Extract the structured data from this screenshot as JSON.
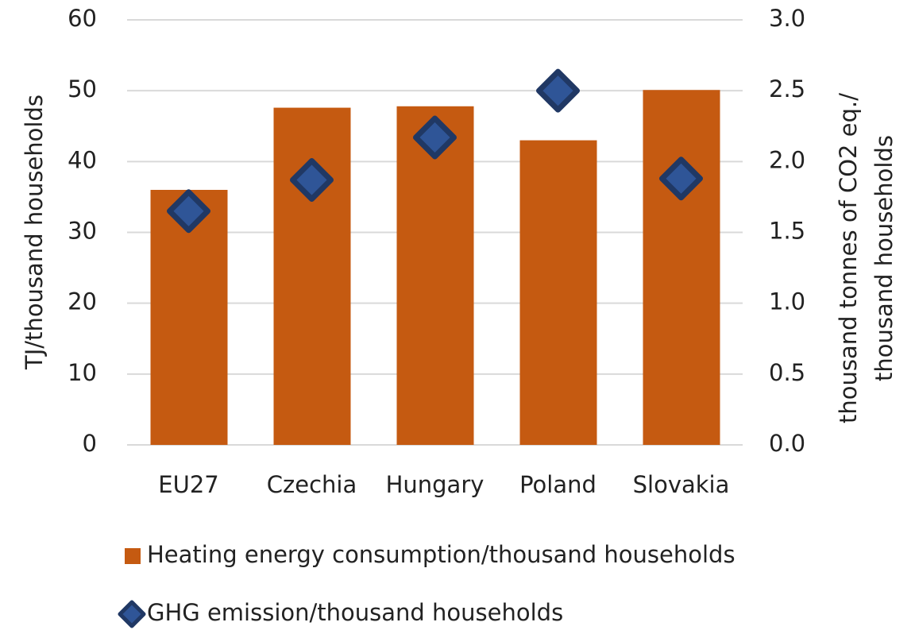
{
  "chart_data": {
    "type": "bar",
    "ylabel": "TJ/thousand households",
    "y2label": [
      "thousand tonnes of CO2 eq./",
      "thousand households"
    ],
    "categories": [
      "EU27",
      "Czechia",
      "Hungary",
      "Poland",
      "Slovakia"
    ],
    "series": [
      {
        "name": "Heating energy consumption/thousand households",
        "type": "bar",
        "color": "#c55a11",
        "values": [
          36,
          47.6,
          47.8,
          43,
          50.1
        ]
      },
      {
        "name": "GHG emission/thousand households",
        "type": "scatter",
        "axis": "y2",
        "color": "#203864",
        "values": [
          1.65,
          1.87,
          2.17,
          2.5,
          1.88
        ]
      }
    ],
    "ylim": [
      0,
      60
    ],
    "yticks": [
      0,
      10,
      20,
      30,
      40,
      50,
      60
    ],
    "y2lim": [
      0,
      3
    ],
    "y2ticks": [
      {
        "value": 0,
        "label": "0.0"
      },
      0.5,
      {
        "value": 1,
        "label": "1.0"
      },
      1.5,
      {
        "value": 2,
        "label": "2.0"
      },
      2.5,
      {
        "value": 3,
        "label": "3.0"
      }
    ],
    "grid": true,
    "legend": "bottom"
  }
}
